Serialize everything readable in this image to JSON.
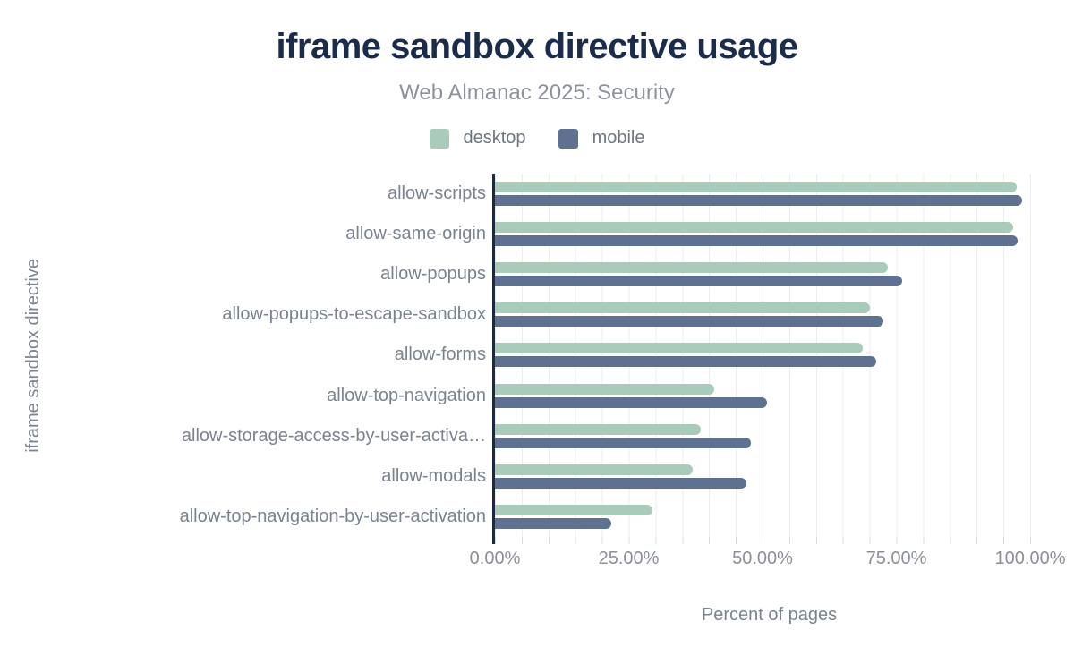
{
  "title": "iframe sandbox directive usage",
  "subtitle": "Web Almanac 2025: Security",
  "legend": {
    "desktop_label": "desktop",
    "mobile_label": "mobile"
  },
  "colors": {
    "desktop": "#a9cbba",
    "mobile": "#5e7191",
    "title": "#1b2b4a",
    "axis_line": "#1c2940",
    "gridline": "#ededf1",
    "muted_text": "#7b8390"
  },
  "chart_data": {
    "type": "bar",
    "orientation": "horizontal",
    "title": "iframe sandbox directive usage",
    "subtitle": "Web Almanac 2025: Security",
    "xlabel": "Percent of pages",
    "ylabel": "iframe sandbox directive",
    "xlim": [
      0,
      100
    ],
    "x_ticks": [
      "0.00%",
      "25.00%",
      "50.00%",
      "75.00%",
      "100.00%"
    ],
    "grid": "vertical minor gridlines every 5%",
    "legend_position": "top center",
    "categories": [
      "allow-scripts",
      "allow-same-origin",
      "allow-popups",
      "allow-popups-to-escape-sandbox",
      "allow-forms",
      "allow-top-navigation",
      "allow-storage-access-by-user-activa…",
      "allow-modals",
      "allow-top-navigation-by-user-activation"
    ],
    "series": [
      {
        "name": "desktop",
        "values": [
          97.5,
          96.8,
          73.4,
          70.0,
          68.8,
          41.0,
          38.5,
          37.0,
          29.5
        ]
      },
      {
        "name": "mobile",
        "values": [
          98.5,
          97.7,
          76.1,
          72.6,
          71.3,
          50.8,
          47.8,
          47.0,
          21.8
        ]
      }
    ]
  }
}
